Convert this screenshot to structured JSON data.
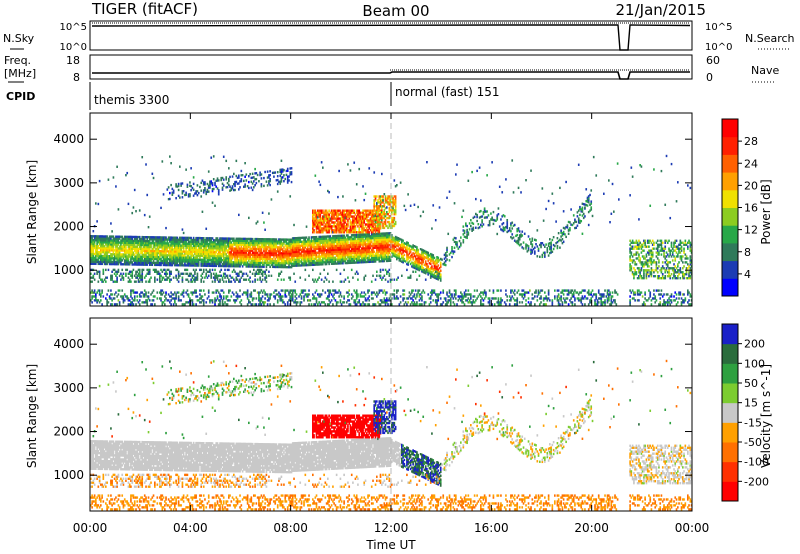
{
  "header": {
    "radar": "TIGER (fitACF)",
    "beam": "Beam 00",
    "date": "21/Jan/2015"
  },
  "nsky_panel": {
    "left_label": "N.Sky",
    "right_label": "N.Search",
    "left_ticks": [
      "10^5",
      "10^0"
    ],
    "right_ticks": [
      "10^5",
      "10^0"
    ]
  },
  "freq_panel": {
    "left_label_line1": "Freq.",
    "left_label_line2": "[MHz]",
    "right_label": "Nave",
    "left_ticks": [
      "18",
      "8"
    ],
    "right_ticks": [
      "60",
      "0"
    ]
  },
  "cpid_panel": {
    "label": "CPID",
    "segments": [
      {
        "label": "themis 3300",
        "start_hour": 0
      },
      {
        "label": "normal (fast) 151",
        "start_hour": 12
      }
    ]
  },
  "x_axis": {
    "label": "Time UT",
    "ticks": [
      "00:00",
      "04:00",
      "08:00",
      "12:00",
      "16:00",
      "20:00",
      "00:00"
    ],
    "range_hours": [
      0,
      24
    ],
    "data_gap_hours": [
      [
        21.1,
        21.5
      ]
    ]
  },
  "power_panel": {
    "ylabel": "Slant Range [km]",
    "yticks": [
      "1000",
      "2000",
      "3000",
      "4000"
    ],
    "colorbar_label": "Power [dB]",
    "colorbar_ticks": [
      "4",
      "8",
      "12",
      "16",
      "20",
      "24",
      "28"
    ],
    "colors": [
      "#0000ff",
      "#1c3cb4",
      "#2f7a5a",
      "#28a848",
      "#8ccc20",
      "#f0e000",
      "#ffa000",
      "#ff6000",
      "#ff2000",
      "#ff0000"
    ]
  },
  "velocity_panel": {
    "ylabel": "Slant Range [km]",
    "yticks": [
      "1000",
      "2000",
      "3000",
      "4000"
    ],
    "colorbar_label": "Velocity [m s^-1]",
    "colorbar_ticks": [
      "200",
      "100",
      "50",
      "15",
      "-15",
      "-50",
      "-100",
      "-200"
    ],
    "colors": [
      "#1a20c8",
      "#2a6c3c",
      "#2ea040",
      "#7ccc30",
      "#c8c8c8",
      "#ffa000",
      "#ff7000",
      "#ff3000",
      "#ff0000"
    ]
  },
  "chart_data": [
    {
      "type": "heatmap",
      "title": "Power [dB]",
      "xlabel": "Time UT",
      "ylabel": "Slant Range [km]",
      "xlim": [
        0,
        24
      ],
      "ylim": [
        180,
        4600
      ],
      "clim": [
        0,
        32
      ],
      "features": [
        {
          "t": [
            0,
            12
          ],
          "range": [
            1100,
            1700
          ],
          "power": [
            8,
            20
          ]
        },
        {
          "t": [
            6,
            12
          ],
          "range": [
            1200,
            1700
          ],
          "power": [
            20,
            28
          ]
        },
        {
          "t": [
            8.8,
            11.5
          ],
          "range": [
            1800,
            2400
          ],
          "power": [
            16,
            28
          ]
        },
        {
          "t": [
            12,
            14
          ],
          "range": [
            900,
            1800
          ],
          "power": [
            12,
            28
          ]
        },
        {
          "t": [
            3,
            8
          ],
          "range": [
            2600,
            3400
          ],
          "power": [
            4,
            8
          ]
        },
        {
          "t": [
            14,
            20
          ],
          "range": [
            1300,
            2800
          ],
          "power": [
            4,
            12
          ]
        },
        {
          "t": [
            21.5,
            24
          ],
          "range": [
            800,
            1700
          ],
          "power": [
            4,
            16
          ]
        }
      ]
    },
    {
      "type": "heatmap",
      "title": "Velocity [m s^-1]",
      "xlabel": "Time UT",
      "ylabel": "Slant Range [km]",
      "xlim": [
        0,
        24
      ],
      "ylim": [
        180,
        4600
      ],
      "clim": [
        -250,
        250
      ],
      "features": [
        {
          "t": [
            0,
            12
          ],
          "range": [
            1100,
            1700
          ],
          "velocity": [
            -15,
            15
          ]
        },
        {
          "t": [
            8.8,
            11.5
          ],
          "range": [
            1850,
            2350
          ],
          "velocity": [
            -250,
            -150
          ]
        },
        {
          "t": [
            11.5,
            12.2
          ],
          "range": [
            1900,
            2600
          ],
          "velocity": [
            100,
            250
          ]
        },
        {
          "t": [
            12.5,
            14
          ],
          "range": [
            900,
            1500
          ],
          "velocity": [
            50,
            250
          ]
        },
        {
          "t": [
            0,
            24
          ],
          "range": [
            200,
            500
          ],
          "velocity": [
            -60,
            -20
          ]
        }
      ]
    }
  ]
}
